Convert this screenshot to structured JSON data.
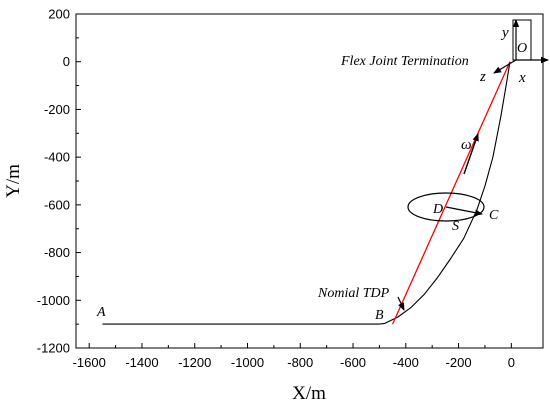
{
  "chart_data": {
    "type": "line",
    "xlabel": "X/m",
    "ylabel": "Y/m",
    "xlim": [
      -1650,
      120
    ],
    "ylim": [
      -1200,
      200
    ],
    "x_ticks": [
      -1600,
      -1400,
      -1200,
      -1000,
      -800,
      -600,
      -400,
      -200,
      0
    ],
    "y_ticks": [
      200,
      0,
      -200,
      -400,
      -600,
      -800,
      -1000,
      -1200
    ],
    "x_tick_labels": [
      "-1600",
      "-1400",
      "-1200",
      "-1000",
      "-800",
      "-600",
      "-400",
      "-200",
      "0"
    ],
    "y_tick_labels": [
      "200",
      "0",
      "-200",
      "-400",
      "-600",
      "-800",
      "-1000",
      "-1200"
    ],
    "grid": false,
    "series": [
      {
        "color": "#000000",
        "x": [
          -1550,
          -1400,
          -1200,
          -1000,
          -800,
          -600,
          -500,
          -480,
          -430,
          -380,
          -330,
          -280,
          -230,
          -180,
          -130,
          -100,
          -70,
          -40,
          -20,
          -5
        ],
        "y": [
          -1100,
          -1100,
          -1100,
          -1100,
          -1100,
          -1100,
          -1100,
          -1097,
          -1070,
          -1030,
          -975,
          -905,
          -825,
          -740,
          -620,
          -520,
          -400,
          -230,
          -100,
          0
        ]
      },
      {
        "color": "#ff0000",
        "x": [
          -450,
          -5
        ],
        "y": [
          -1100,
          0
        ]
      }
    ],
    "annotations": {
      "point_A": "A",
      "point_B": "B",
      "point_C": "C",
      "point_D": "D",
      "point_O": "O",
      "label_S": "S",
      "label_omega": "ω",
      "nominal_tdp": "Nomial TDP",
      "flex_joint": "Flex Joint Termination",
      "axis_x": "x",
      "axis_y": "y",
      "axis_z": "z"
    }
  }
}
